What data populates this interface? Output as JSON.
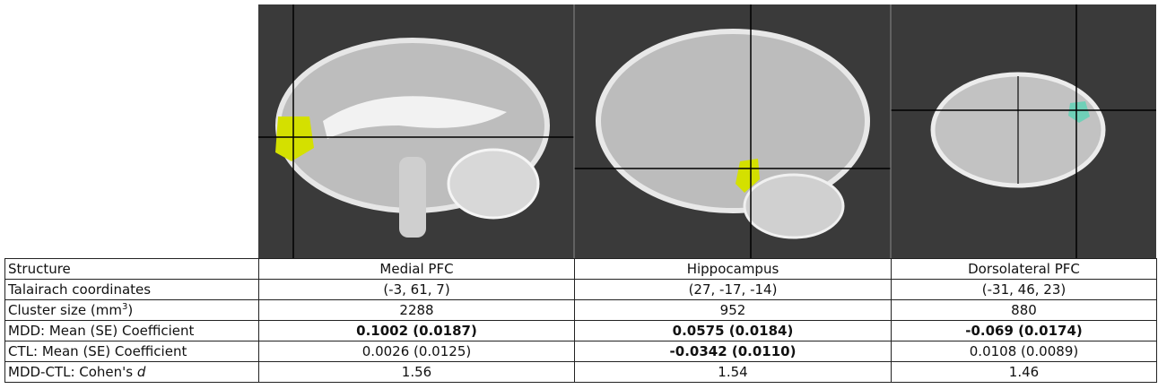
{
  "table": {
    "header_label": "Structure",
    "columns": [
      "Medial PFC",
      "Hippocampus",
      "Dorsolateral PFC"
    ],
    "rows": [
      {
        "label": "Talairach coordinates",
        "cells": [
          "(-3, 61, 7)",
          "(27, -17, -14)",
          "(-31, 46, 23)"
        ],
        "bold": [
          false,
          false,
          false
        ]
      },
      {
        "label": "Cluster size (mm",
        "label_sup": "3",
        "label_end": ")",
        "cells": [
          "2288",
          "952",
          "880"
        ],
        "bold": [
          false,
          false,
          false
        ]
      },
      {
        "label": "MDD: Mean (SE) Coefficient",
        "cells": [
          "0.1002 (0.0187)",
          "0.0575 (0.0184)",
          "-0.069 (0.0174)"
        ],
        "bold": [
          true,
          true,
          true
        ]
      },
      {
        "label": "CTL: Mean (SE) Coefficient",
        "cells": [
          "0.0026 (0.0125)",
          "-0.0342 (0.0110)",
          "0.0108 (0.0089)"
        ],
        "bold": [
          false,
          true,
          false
        ]
      },
      {
        "label": "MDD-CTL: Cohen's",
        "label_italic": "d",
        "cells": [
          "1.56",
          "1.54",
          "1.46"
        ],
        "bold": [
          false,
          false,
          false
        ]
      }
    ]
  }
}
